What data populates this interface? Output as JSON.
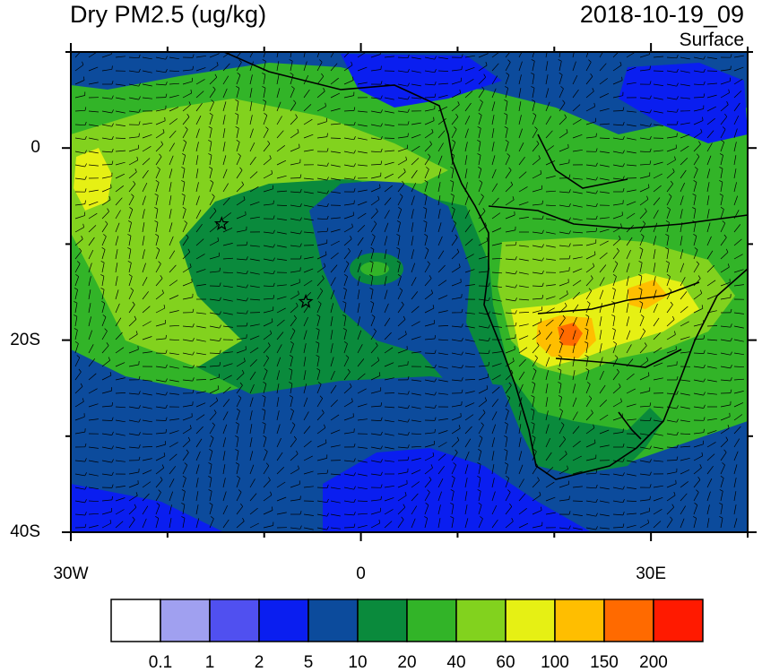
{
  "header": {
    "title": "Dry PM2.5 (ug/kg)",
    "datetime": "2018-10-19_09",
    "level": "Surface"
  },
  "map": {
    "lon_range": [
      -30,
      40
    ],
    "lat_range": [
      -40,
      10
    ],
    "lon_ticks": [
      {
        "value": -30,
        "label": "30W"
      },
      {
        "value": 0,
        "label": "0"
      },
      {
        "value": 30,
        "label": "30E"
      }
    ],
    "lat_ticks": [
      {
        "value": 0,
        "label": "0"
      },
      {
        "value": -20,
        "label": "20S"
      },
      {
        "value": -40,
        "label": "40S"
      }
    ],
    "markers": [
      {
        "symbol": "star",
        "lon": -14.4,
        "lat": -7.9
      },
      {
        "symbol": "star",
        "lon": -5.7,
        "lat": -16.0
      }
    ],
    "overlay": "wind barbs"
  },
  "colorbar": {
    "colors": [
      "#ffffff",
      "#a0a0f0",
      "#5050f0",
      "#0a1ef0",
      "#0c4b9c",
      "#0a8a3c",
      "#32b428",
      "#82d21e",
      "#e6f014",
      "#ffbe00",
      "#ff6a00",
      "#ff1a00"
    ],
    "labels": [
      "0.1",
      "1",
      "2",
      "5",
      "10",
      "20",
      "40",
      "60",
      "100",
      "150",
      "200"
    ]
  }
}
